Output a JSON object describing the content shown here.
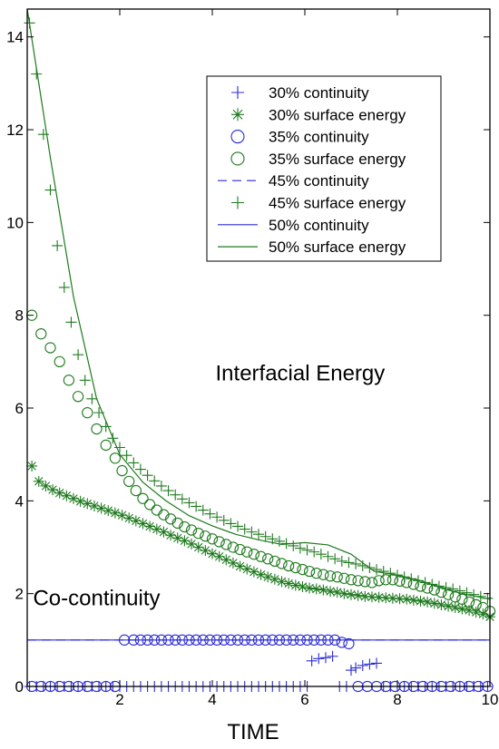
{
  "chart_data": {
    "type": "scatter",
    "title": "",
    "xlabel": "TIME",
    "ylabel": "",
    "xlim": [
      0,
      10
    ],
    "ylim": [
      0,
      14.6
    ],
    "x_ticks": [
      2,
      4,
      6,
      8,
      10
    ],
    "y_ticks": [
      0,
      2,
      4,
      6,
      8,
      10,
      12,
      14
    ],
    "x_tick_labels": [
      "2",
      "4",
      "6",
      "8",
      "10"
    ],
    "y_tick_labels": [
      "0",
      "2",
      "4",
      "6",
      "8",
      "10",
      "12",
      "14"
    ],
    "grid": false,
    "legend_position": "top-right",
    "annotations": [
      {
        "text": "Interfacial Energy",
        "x": 5.9,
        "y": 6.6
      },
      {
        "text": "Co-continuity",
        "x": 1.5,
        "y": 1.75
      }
    ],
    "series": [
      {
        "name": "30% continuity",
        "color": "#2b2bd6",
        "marker": "plus",
        "x": [
          0.05,
          0.2,
          0.35,
          0.5,
          0.65,
          0.8,
          0.95,
          1.1,
          1.25,
          1.4,
          1.55,
          1.7,
          1.85,
          2.0,
          2.15,
          2.3,
          2.45,
          2.6,
          2.75,
          2.9,
          3.05,
          3.2,
          3.35,
          3.5,
          3.65,
          3.8,
          3.95,
          4.1,
          4.25,
          4.4,
          4.55,
          4.7,
          4.85,
          5.0,
          5.15,
          5.3,
          5.45,
          5.6,
          5.75,
          5.9,
          6.05,
          6.15,
          6.3,
          6.45,
          6.6,
          6.75,
          6.9,
          7.0,
          7.1,
          7.25,
          7.4,
          7.55,
          7.7,
          7.85,
          8.0,
          8.15,
          8.3,
          8.45,
          8.6,
          8.75,
          8.9,
          9.05,
          9.2,
          9.35,
          9.5,
          9.65,
          9.8,
          9.95
        ],
        "y": [
          0,
          0,
          0,
          0,
          0,
          0,
          0,
          0,
          0,
          0,
          0,
          0,
          0,
          0,
          0,
          0,
          0,
          0,
          0,
          0,
          0,
          0,
          0,
          0,
          0,
          0,
          0,
          0,
          0,
          0,
          0,
          0,
          0,
          0,
          0,
          0,
          0,
          0,
          0,
          0,
          0,
          0.55,
          0.6,
          0.62,
          0.65,
          0,
          0,
          0.35,
          0.4,
          0.45,
          0.48,
          0.5,
          0,
          0,
          0,
          0,
          0,
          0,
          0,
          0,
          0,
          0,
          0,
          0,
          0,
          0,
          0,
          0
        ]
      },
      {
        "name": "30% surface energy",
        "color": "#1e7a1e",
        "marker": "asterisk",
        "x": [
          0.1,
          0.25,
          0.4,
          0.55,
          0.7,
          0.85,
          1.0,
          1.15,
          1.3,
          1.45,
          1.6,
          1.75,
          1.9,
          2.05,
          2.2,
          2.35,
          2.5,
          2.65,
          2.8,
          2.95,
          3.1,
          3.25,
          3.4,
          3.55,
          3.7,
          3.85,
          4.0,
          4.15,
          4.3,
          4.45,
          4.6,
          4.75,
          4.9,
          5.05,
          5.2,
          5.35,
          5.5,
          5.65,
          5.8,
          5.95,
          6.1,
          6.25,
          6.4,
          6.55,
          6.7,
          6.85,
          7.0,
          7.15,
          7.3,
          7.45,
          7.6,
          7.75,
          7.9,
          8.05,
          8.2,
          8.35,
          8.5,
          8.65,
          8.8,
          8.95,
          9.1,
          9.25,
          9.4,
          9.55,
          9.7,
          9.85,
          10.0
        ],
        "y": [
          4.75,
          4.42,
          4.32,
          4.24,
          4.17,
          4.11,
          4.05,
          3.99,
          3.94,
          3.89,
          3.84,
          3.79,
          3.74,
          3.69,
          3.63,
          3.57,
          3.51,
          3.45,
          3.39,
          3.33,
          3.26,
          3.2,
          3.14,
          3.07,
          3.0,
          2.93,
          2.86,
          2.8,
          2.73,
          2.66,
          2.59,
          2.53,
          2.47,
          2.41,
          2.36,
          2.31,
          2.26,
          2.22,
          2.18,
          2.15,
          2.12,
          2.1,
          2.08,
          2.05,
          2.03,
          2.0,
          1.98,
          1.96,
          1.94,
          1.93,
          1.92,
          1.91,
          1.9,
          1.89,
          1.88,
          1.86,
          1.84,
          1.82,
          1.79,
          1.76,
          1.73,
          1.7,
          1.67,
          1.64,
          1.6,
          1.56,
          1.5
        ]
      },
      {
        "name": "35% continuity",
        "color": "#2b2bd6",
        "marker": "circle",
        "x": [
          0.1,
          0.3,
          0.5,
          0.7,
          0.9,
          1.1,
          1.3,
          1.5,
          1.7,
          1.9,
          2.1,
          2.3,
          2.45,
          2.6,
          2.75,
          2.9,
          3.05,
          3.2,
          3.35,
          3.5,
          3.65,
          3.8,
          3.95,
          4.1,
          4.25,
          4.4,
          4.55,
          4.7,
          4.85,
          5.0,
          5.15,
          5.3,
          5.45,
          5.6,
          5.75,
          5.9,
          6.05,
          6.2,
          6.35,
          6.5,
          6.65,
          6.8,
          6.95,
          7.15,
          7.35,
          7.55,
          7.75,
          7.95,
          8.15,
          8.35,
          8.55,
          8.75,
          8.95,
          9.15,
          9.35,
          9.55,
          9.75,
          9.95
        ],
        "y": [
          0,
          0,
          0,
          0,
          0,
          0,
          0,
          0,
          0,
          0,
          1,
          1,
          1,
          1,
          1,
          1,
          1,
          1,
          1,
          1,
          1,
          1,
          1,
          1,
          1,
          1,
          1,
          1,
          1,
          1,
          1,
          1,
          1,
          1,
          1,
          1,
          1,
          1,
          1,
          1,
          1,
          0.95,
          0.92,
          0,
          0,
          0,
          0,
          0,
          0,
          0,
          0,
          0,
          0,
          0,
          0,
          0,
          0,
          0
        ]
      },
      {
        "name": "35% surface energy",
        "color": "#1e7a1e",
        "marker": "circle",
        "x": [
          0.1,
          0.3,
          0.5,
          0.7,
          0.9,
          1.1,
          1.3,
          1.5,
          1.7,
          1.9,
          2.05,
          2.2,
          2.35,
          2.5,
          2.65,
          2.8,
          2.95,
          3.1,
          3.25,
          3.4,
          3.55,
          3.7,
          3.85,
          4.0,
          4.15,
          4.3,
          4.45,
          4.6,
          4.75,
          4.9,
          5.05,
          5.2,
          5.35,
          5.5,
          5.65,
          5.8,
          5.95,
          6.1,
          6.25,
          6.4,
          6.55,
          6.7,
          6.85,
          7.0,
          7.15,
          7.3,
          7.45,
          7.6,
          7.75,
          7.9,
          8.05,
          8.2,
          8.35,
          8.5,
          8.65,
          8.8,
          8.95,
          9.1,
          9.25,
          9.4,
          9.55,
          9.7,
          9.85,
          10.0
        ],
        "y": [
          8.0,
          7.6,
          7.3,
          7.0,
          6.6,
          6.25,
          5.9,
          5.55,
          5.2,
          4.92,
          4.65,
          4.42,
          4.22,
          4.05,
          3.92,
          3.8,
          3.7,
          3.61,
          3.52,
          3.44,
          3.37,
          3.3,
          3.24,
          3.18,
          3.12,
          3.06,
          3.0,
          2.95,
          2.9,
          2.85,
          2.8,
          2.75,
          2.7,
          2.65,
          2.6,
          2.56,
          2.52,
          2.48,
          2.44,
          2.41,
          2.38,
          2.36,
          2.33,
          2.3,
          2.28,
          2.26,
          2.24,
          2.28,
          2.3,
          2.3,
          2.27,
          2.24,
          2.2,
          2.16,
          2.12,
          2.08,
          2.03,
          1.98,
          1.93,
          1.88,
          1.82,
          1.76,
          1.7,
          1.62
        ]
      },
      {
        "name": "45% continuity",
        "color": "#2b2bd6",
        "marker": "dash-line",
        "x": [
          0,
          10
        ],
        "y": [
          1,
          1
        ]
      },
      {
        "name": "45% surface energy",
        "color": "#1e7a1e",
        "marker": "plus",
        "x": [
          0.05,
          0.2,
          0.35,
          0.5,
          0.65,
          0.8,
          0.95,
          1.1,
          1.25,
          1.4,
          1.55,
          1.7,
          1.85,
          2.0,
          2.15,
          2.3,
          2.45,
          2.6,
          2.75,
          2.9,
          3.05,
          3.2,
          3.35,
          3.5,
          3.65,
          3.8,
          3.95,
          4.1,
          4.25,
          4.4,
          4.55,
          4.7,
          4.85,
          5.0,
          5.15,
          5.3,
          5.45,
          5.6,
          5.75,
          5.9,
          6.05,
          6.2,
          6.35,
          6.5,
          6.65,
          6.8,
          6.95,
          7.1,
          7.25,
          7.4,
          7.55,
          7.7,
          7.85,
          8.0,
          8.15,
          8.3,
          8.45,
          8.6,
          8.75,
          8.9,
          9.05,
          9.2,
          9.35,
          9.5,
          9.65,
          9.8,
          9.95
        ],
        "y": [
          14.3,
          13.2,
          11.9,
          10.7,
          9.5,
          8.6,
          7.85,
          7.15,
          6.6,
          6.2,
          5.9,
          5.6,
          5.35,
          5.15,
          4.98,
          4.82,
          4.68,
          4.55,
          4.43,
          4.32,
          4.22,
          4.13,
          4.04,
          3.96,
          3.88,
          3.8,
          3.72,
          3.65,
          3.58,
          3.51,
          3.45,
          3.39,
          3.33,
          3.28,
          3.23,
          3.18,
          3.13,
          3.08,
          3.03,
          2.98,
          2.94,
          2.9,
          2.85,
          2.8,
          2.75,
          2.7,
          2.67,
          2.64,
          2.6,
          2.56,
          2.52,
          2.48,
          2.44,
          2.4,
          2.36,
          2.32,
          2.28,
          2.24,
          2.2,
          2.16,
          2.13,
          2.1,
          2.06,
          2.02,
          1.98,
          1.94,
          1.9
        ]
      },
      {
        "name": "50% continuity",
        "color": "#2b2bd6",
        "marker": "solid-line",
        "x": [
          0,
          10
        ],
        "y": [
          1,
          1
        ]
      },
      {
        "name": "50% surface energy",
        "color": "#1e7a1e",
        "marker": "solid-line",
        "x": [
          0,
          0.5,
          1.0,
          1.5,
          2.0,
          2.5,
          3.0,
          3.5,
          4.0,
          4.5,
          5.0,
          5.5,
          6.0,
          6.5,
          7.0,
          7.5,
          8.0,
          8.5,
          9.0,
          9.5,
          10.0
        ],
        "y": [
          14.6,
          11.4,
          8.4,
          6.2,
          5.0,
          4.4,
          4.0,
          3.68,
          3.46,
          3.28,
          3.16,
          3.06,
          3.1,
          3.05,
          2.85,
          2.48,
          2.4,
          2.28,
          2.1,
          1.98,
          1.88
        ]
      }
    ]
  }
}
